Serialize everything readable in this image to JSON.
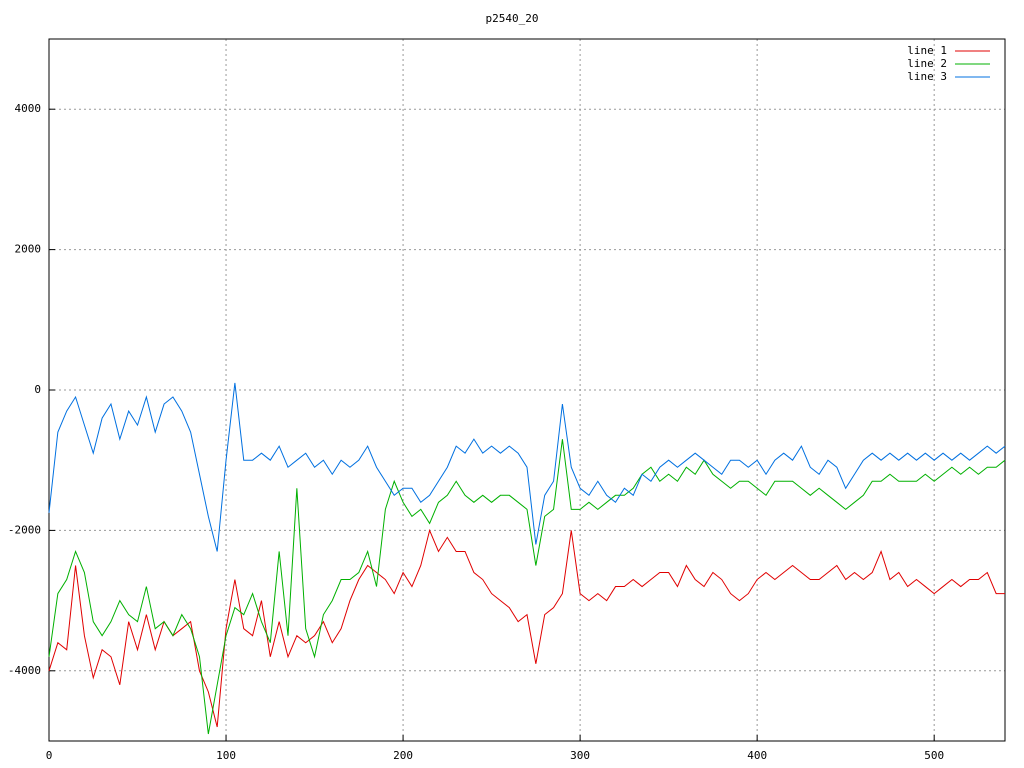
{
  "chart_data": {
    "type": "line",
    "title": "p2540_20",
    "x": [
      0,
      5,
      10,
      15,
      20,
      25,
      30,
      35,
      40,
      45,
      50,
      55,
      60,
      65,
      70,
      75,
      80,
      85,
      90,
      95,
      100,
      105,
      110,
      115,
      120,
      125,
      130,
      135,
      140,
      145,
      150,
      155,
      160,
      165,
      170,
      175,
      180,
      185,
      190,
      195,
      200,
      205,
      210,
      215,
      220,
      225,
      230,
      235,
      240,
      245,
      250,
      255,
      260,
      265,
      270,
      275,
      280,
      285,
      290,
      295,
      300,
      305,
      310,
      315,
      320,
      325,
      330,
      335,
      340,
      345,
      350,
      355,
      360,
      365,
      370,
      375,
      380,
      385,
      390,
      395,
      400,
      405,
      410,
      415,
      420,
      425,
      430,
      435,
      440,
      445,
      450,
      455,
      460,
      465,
      470,
      475,
      480,
      485,
      490,
      495,
      500,
      505,
      510,
      515,
      520,
      525,
      530,
      535,
      540
    ],
    "series": [
      {
        "name": "line 1",
        "color": "#e00000",
        "values": [
          -4000,
          -3600,
          -3700,
          -2500,
          -3500,
          -4100,
          -3700,
          -3800,
          -4200,
          -3300,
          -3700,
          -3200,
          -3700,
          -3300,
          -3500,
          -3400,
          -3300,
          -4000,
          -4300,
          -4800,
          -3400,
          -2700,
          -3400,
          -3500,
          -3000,
          -3800,
          -3300,
          -3800,
          -3500,
          -3600,
          -3500,
          -3300,
          -3600,
          -3400,
          -3000,
          -2700,
          -2500,
          -2600,
          -2700,
          -2900,
          -2600,
          -2800,
          -2500,
          -2000,
          -2300,
          -2100,
          -2300,
          -2300,
          -2600,
          -2700,
          -2900,
          -3000,
          -3100,
          -3300,
          -3200,
          -3900,
          -3200,
          -3100,
          -2900,
          -2000,
          -2900,
          -3000,
          -2900,
          -3000,
          -2800,
          -2800,
          -2700,
          -2800,
          -2700,
          -2600,
          -2600,
          -2800,
          -2500,
          -2700,
          -2800,
          -2600,
          -2700,
          -2900,
          -3000,
          -2900,
          -2700,
          -2600,
          -2700,
          -2600,
          -2500,
          -2600,
          -2700,
          -2700,
          -2600,
          -2500,
          -2700,
          -2600,
          -2700,
          -2600,
          -2300,
          -2700,
          -2600,
          -2800,
          -2700,
          -2800,
          -2900,
          -2800,
          -2700,
          -2800,
          -2700,
          -2700,
          -2600,
          -2900,
          -2900
        ]
      },
      {
        "name": "line 2",
        "color": "#00b000",
        "values": [
          -3800,
          -2900,
          -2700,
          -2300,
          -2600,
          -3300,
          -3500,
          -3300,
          -3000,
          -3200,
          -3300,
          -2800,
          -3400,
          -3300,
          -3500,
          -3200,
          -3400,
          -3800,
          -4900,
          -4200,
          -3500,
          -3100,
          -3200,
          -2900,
          -3300,
          -3600,
          -2300,
          -3500,
          -1400,
          -3400,
          -3800,
          -3200,
          -3000,
          -2700,
          -2700,
          -2600,
          -2300,
          -2800,
          -1700,
          -1300,
          -1600,
          -1800,
          -1700,
          -1900,
          -1600,
          -1500,
          -1300,
          -1500,
          -1600,
          -1500,
          -1600,
          -1500,
          -1500,
          -1600,
          -1700,
          -2500,
          -1800,
          -1700,
          -700,
          -1700,
          -1700,
          -1600,
          -1700,
          -1600,
          -1500,
          -1500,
          -1400,
          -1200,
          -1100,
          -1300,
          -1200,
          -1300,
          -1100,
          -1200,
          -1000,
          -1200,
          -1300,
          -1400,
          -1300,
          -1300,
          -1400,
          -1500,
          -1300,
          -1300,
          -1300,
          -1400,
          -1500,
          -1400,
          -1500,
          -1600,
          -1700,
          -1600,
          -1500,
          -1300,
          -1300,
          -1200,
          -1300,
          -1300,
          -1300,
          -1200,
          -1300,
          -1200,
          -1100,
          -1200,
          -1100,
          -1200,
          -1100,
          -1100,
          -1000
        ]
      },
      {
        "name": "line 3",
        "color": "#0070e0",
        "values": [
          -1750,
          -600,
          -300,
          -100,
          -500,
          -900,
          -400,
          -200,
          -700,
          -300,
          -500,
          -100,
          -600,
          -200,
          -100,
          -300,
          -600,
          -1200,
          -1800,
          -2300,
          -1000,
          100,
          -1000,
          -1000,
          -900,
          -1000,
          -800,
          -1100,
          -1000,
          -900,
          -1100,
          -1000,
          -1200,
          -1000,
          -1100,
          -1000,
          -800,
          -1100,
          -1300,
          -1500,
          -1400,
          -1400,
          -1600,
          -1500,
          -1300,
          -1100,
          -800,
          -900,
          -700,
          -900,
          -800,
          -900,
          -800,
          -900,
          -1100,
          -2200,
          -1500,
          -1300,
          -200,
          -1100,
          -1400,
          -1500,
          -1300,
          -1500,
          -1600,
          -1400,
          -1500,
          -1200,
          -1300,
          -1100,
          -1000,
          -1100,
          -1000,
          -900,
          -1000,
          -1100,
          -1200,
          -1000,
          -1000,
          -1100,
          -1000,
          -1200,
          -1000,
          -900,
          -1000,
          -800,
          -1100,
          -1200,
          -1000,
          -1100,
          -1400,
          -1200,
          -1000,
          -900,
          -1000,
          -900,
          -1000,
          -900,
          -1000,
          -900,
          -1000,
          -900,
          -1000,
          -900,
          -1000,
          -900,
          -800,
          -900,
          -800
        ]
      }
    ],
    "xlim": [
      0,
      540
    ],
    "ylim": [
      -5000,
      5000
    ],
    "xticks": [
      0,
      100,
      200,
      300,
      400,
      500
    ],
    "yticks": [
      -4000,
      -2000,
      0,
      2000,
      4000
    ],
    "grid": true,
    "legend": "top-right"
  }
}
